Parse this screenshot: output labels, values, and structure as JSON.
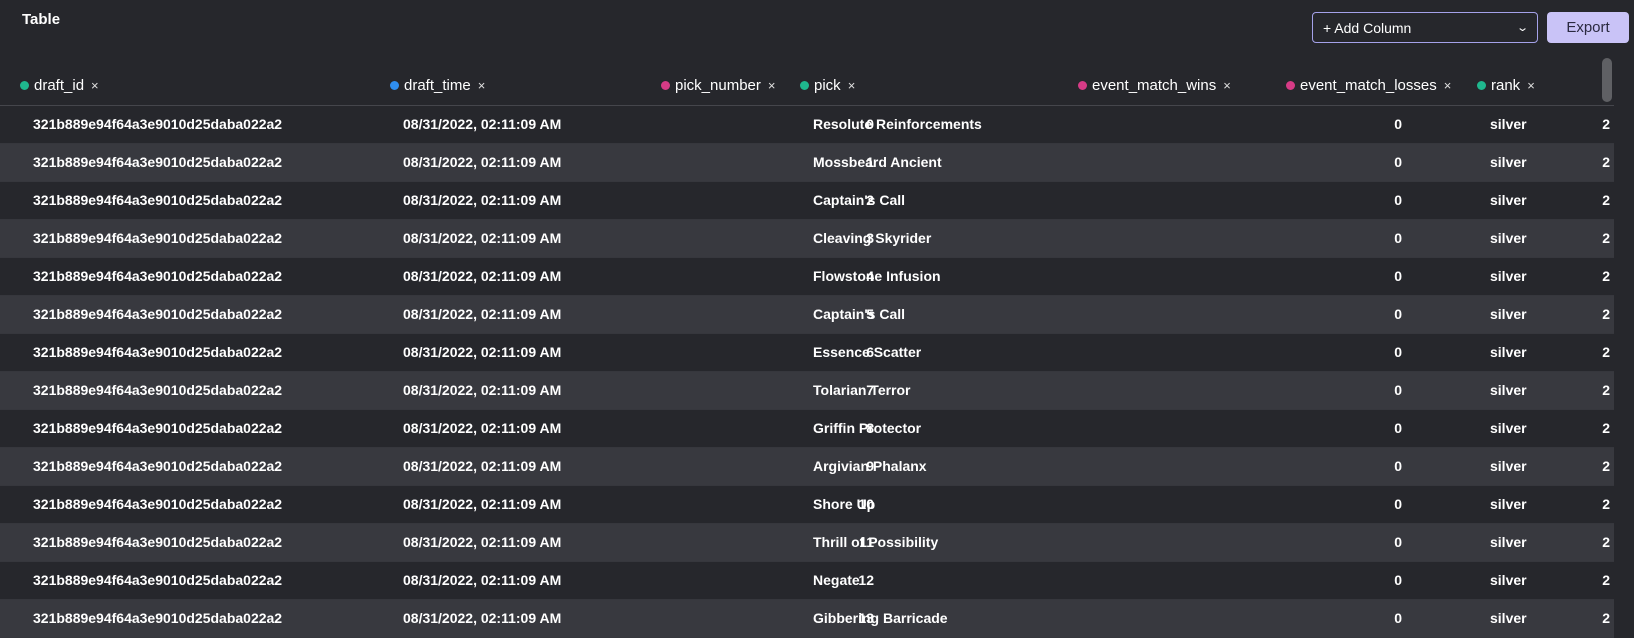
{
  "header": {
    "title": "Table",
    "add_column_label": "+ Add Column",
    "export_label": "Export"
  },
  "colors": {
    "background": "#26272c",
    "row_alt": "#38393f",
    "accent": "#c9c3f7",
    "dot_green": "#1fb78e",
    "dot_blue": "#2f8ef0",
    "dot_pink": "#d63b86"
  },
  "columns": [
    {
      "label": "draft_id",
      "dot": "#1fb78e"
    },
    {
      "label": "draft_time",
      "dot": "#2f8ef0"
    },
    {
      "label": "pick_number",
      "dot": "#d63b86"
    },
    {
      "label": "pick",
      "dot": "#1fb78e"
    },
    {
      "label": "event_match_wins",
      "dot": "#d63b86"
    },
    {
      "label": "event_match_losses",
      "dot": "#d63b86"
    },
    {
      "label": "rank",
      "dot": "#1fb78e"
    }
  ],
  "remove_glyph": "×",
  "rows": [
    [
      "321b889e94f64a3e9010d25daba022a2",
      "08/31/2022, 02:11:09 AM",
      "0",
      "Resolute Reinforcements",
      "0",
      "2",
      "silver"
    ],
    [
      "321b889e94f64a3e9010d25daba022a2",
      "08/31/2022, 02:11:09 AM",
      "1",
      "Mossbeard Ancient",
      "0",
      "2",
      "silver"
    ],
    [
      "321b889e94f64a3e9010d25daba022a2",
      "08/31/2022, 02:11:09 AM",
      "2",
      "Captain's Call",
      "0",
      "2",
      "silver"
    ],
    [
      "321b889e94f64a3e9010d25daba022a2",
      "08/31/2022, 02:11:09 AM",
      "3",
      "Cleaving Skyrider",
      "0",
      "2",
      "silver"
    ],
    [
      "321b889e94f64a3e9010d25daba022a2",
      "08/31/2022, 02:11:09 AM",
      "4",
      "Flowstone Infusion",
      "0",
      "2",
      "silver"
    ],
    [
      "321b889e94f64a3e9010d25daba022a2",
      "08/31/2022, 02:11:09 AM",
      "5",
      "Captain's Call",
      "0",
      "2",
      "silver"
    ],
    [
      "321b889e94f64a3e9010d25daba022a2",
      "08/31/2022, 02:11:09 AM",
      "6",
      "Essence Scatter",
      "0",
      "2",
      "silver"
    ],
    [
      "321b889e94f64a3e9010d25daba022a2",
      "08/31/2022, 02:11:09 AM",
      "7",
      "Tolarian Terror",
      "0",
      "2",
      "silver"
    ],
    [
      "321b889e94f64a3e9010d25daba022a2",
      "08/31/2022, 02:11:09 AM",
      "8",
      "Griffin Protector",
      "0",
      "2",
      "silver"
    ],
    [
      "321b889e94f64a3e9010d25daba022a2",
      "08/31/2022, 02:11:09 AM",
      "9",
      "Argivian Phalanx",
      "0",
      "2",
      "silver"
    ],
    [
      "321b889e94f64a3e9010d25daba022a2",
      "08/31/2022, 02:11:09 AM",
      "10",
      "Shore Up",
      "0",
      "2",
      "silver"
    ],
    [
      "321b889e94f64a3e9010d25daba022a2",
      "08/31/2022, 02:11:09 AM",
      "11",
      "Thrill of Possibility",
      "0",
      "2",
      "silver"
    ],
    [
      "321b889e94f64a3e9010d25daba022a2",
      "08/31/2022, 02:11:09 AM",
      "12",
      "Negate",
      "0",
      "2",
      "silver"
    ],
    [
      "321b889e94f64a3e9010d25daba022a2",
      "08/31/2022, 02:11:09 AM",
      "13",
      "Gibbering Barricade",
      "0",
      "2",
      "silver"
    ]
  ]
}
